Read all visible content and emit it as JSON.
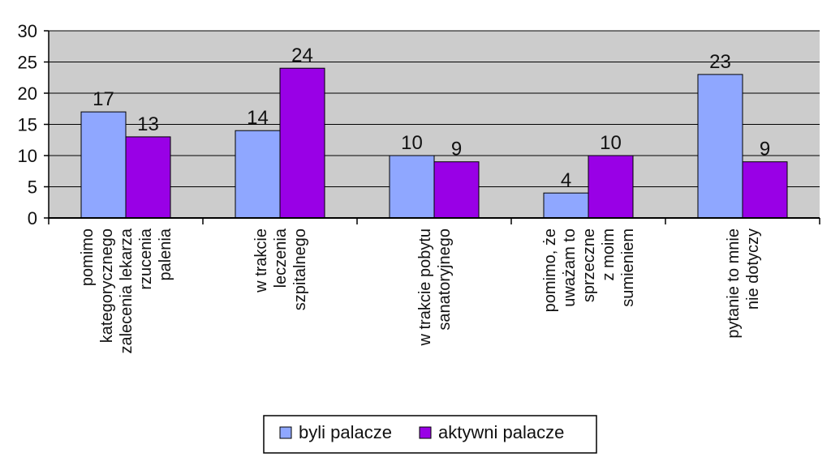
{
  "chart_data": {
    "type": "bar",
    "title": "",
    "xlabel": "",
    "ylabel": "",
    "ylim": [
      0,
      30
    ],
    "yticks": [
      0,
      5,
      10,
      15,
      20,
      25,
      30
    ],
    "grid": true,
    "categories": [
      [
        "pomimo",
        "kategorycznego",
        "zalecenia lekarza",
        "rzucenia",
        "palenia"
      ],
      [
        "w trakcie",
        "leczenia",
        "szpitalnego"
      ],
      [
        "w trakcie pobytu",
        "sanatoryjnego"
      ],
      [
        "pomimo, że",
        "uważam to",
        "sprzeczne",
        "z moim",
        "sumieniem"
      ],
      [
        "pytanie to mnie",
        "nie dotyczy"
      ]
    ],
    "series": [
      {
        "name": "byli palacze",
        "color": "#8FA7FF",
        "values": [
          17,
          14,
          10,
          4,
          23
        ]
      },
      {
        "name": "aktywni palacze",
        "color": "#9900E6",
        "values": [
          13,
          24,
          9,
          10,
          9
        ]
      }
    ],
    "legend_position": "bottom"
  }
}
